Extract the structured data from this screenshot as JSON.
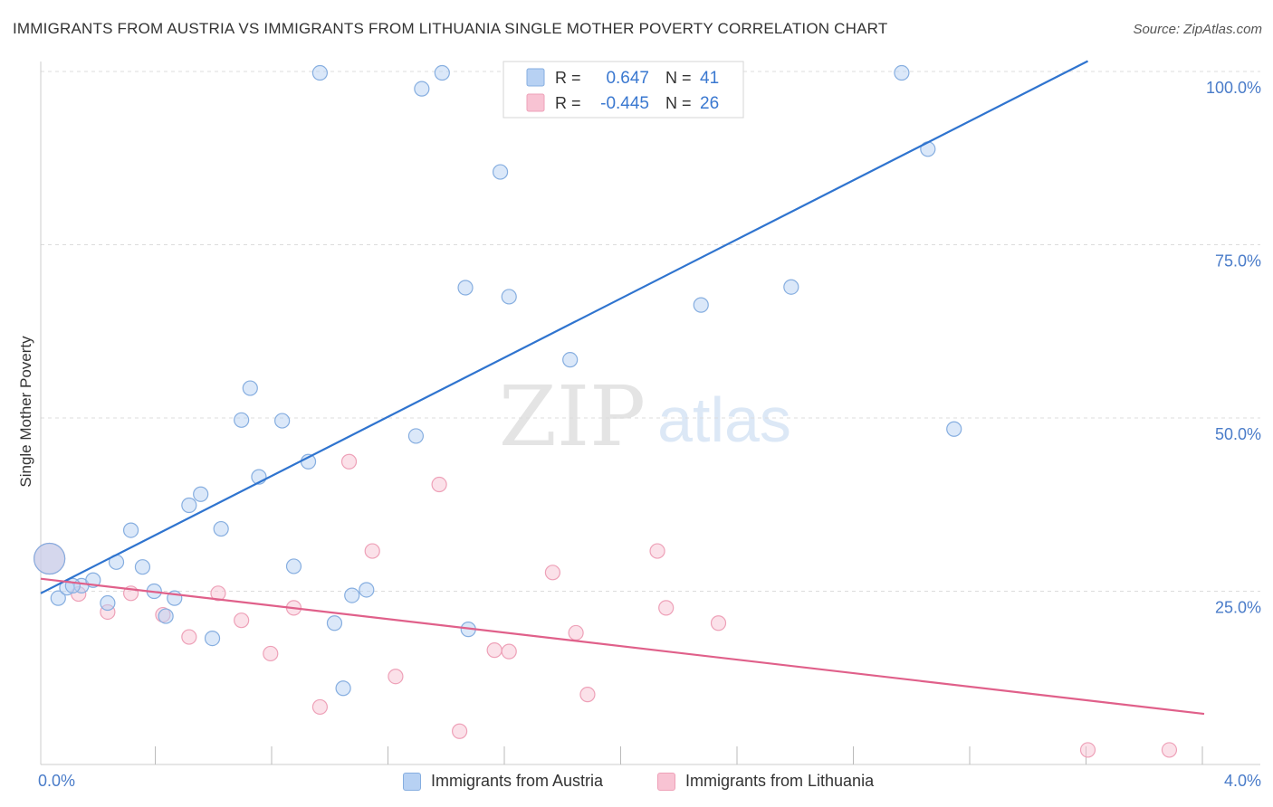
{
  "title": "IMMIGRANTS FROM AUSTRIA VS IMMIGRANTS FROM LITHUANIA SINGLE MOTHER POVERTY CORRELATION CHART",
  "source": "Source: ZipAtlas.com",
  "watermark": {
    "zip": "ZIP",
    "atlas": "atlas"
  },
  "colors": {
    "austria_fill": "#b7d1f3",
    "austria_stroke": "#86aee0",
    "austria_line": "#2f74cf",
    "lithuania_fill": "#f8c3d3",
    "lithuania_stroke": "#eea1b8",
    "lithuania_line": "#e0608a",
    "axis_label": "#4a7cc9",
    "grid": "#dddddd"
  },
  "stats_box": {
    "rows": [
      {
        "series": "austria",
        "r_label": "R =",
        "r_value": "0.647",
        "n_label": "N =",
        "n_value": "41"
      },
      {
        "series": "lithuania",
        "r_label": "R =",
        "r_value": "-0.445",
        "n_label": "N =",
        "n_value": "26"
      }
    ]
  },
  "legend": {
    "austria": "Immigrants from Austria",
    "lithuania": "Immigrants from Lithuania"
  },
  "chart_data": {
    "type": "scatter",
    "xlabel": "",
    "ylabel": "Single Mother Poverty",
    "xlim": [
      0,
      4.0
    ],
    "ylim": [
      0,
      102
    ],
    "x_tick_labels": [
      {
        "value": 0.0,
        "label": "0.0%"
      },
      {
        "value": 4.0,
        "label": "4.0%"
      }
    ],
    "y_tick_labels": [
      {
        "value": 25,
        "label": "25.0%"
      },
      {
        "value": 50,
        "label": "50.0%"
      },
      {
        "value": 75,
        "label": "75.0%"
      },
      {
        "value": 100,
        "label": "100.0%"
      }
    ],
    "y_gridlines": [
      25,
      50,
      75,
      100
    ],
    "x_ticks": [
      0.4,
      0.8,
      1.2,
      1.6,
      2.0,
      2.4,
      2.8,
      3.2,
      3.6,
      4.0
    ],
    "series": [
      {
        "name": "Immigrants from Austria",
        "key": "austria",
        "trend": {
          "x0": 0.0,
          "y0": 24.7,
          "x1": 3.6,
          "y1": 101.5
        },
        "points": [
          [
            0.03,
            29.7,
            "large"
          ],
          [
            0.06,
            24.0
          ],
          [
            0.09,
            25.5
          ],
          [
            0.14,
            25.8
          ],
          [
            0.18,
            26.6
          ],
          [
            0.23,
            23.3
          ],
          [
            0.26,
            29.2
          ],
          [
            0.31,
            33.8
          ],
          [
            0.35,
            28.5
          ],
          [
            0.39,
            25.0
          ],
          [
            0.43,
            21.4
          ],
          [
            0.46,
            24.0
          ],
          [
            0.51,
            37.4
          ],
          [
            0.55,
            39.0
          ],
          [
            0.59,
            18.2
          ],
          [
            0.62,
            34.0
          ],
          [
            0.69,
            49.7
          ],
          [
            0.72,
            54.3
          ],
          [
            0.75,
            41.5
          ],
          [
            0.83,
            49.6
          ],
          [
            0.87,
            28.6
          ],
          [
            0.92,
            43.7
          ],
          [
            0.96,
            99.8
          ],
          [
            1.01,
            20.4
          ],
          [
            1.04,
            11.0
          ],
          [
            1.07,
            24.4
          ],
          [
            1.12,
            25.2
          ],
          [
            1.29,
            47.4
          ],
          [
            1.31,
            97.5
          ],
          [
            1.38,
            99.8
          ],
          [
            1.47,
            19.5
          ],
          [
            1.46,
            68.8
          ],
          [
            1.58,
            85.5
          ],
          [
            1.61,
            67.5
          ],
          [
            1.82,
            58.4
          ],
          [
            2.27,
            66.3
          ],
          [
            2.58,
            68.9
          ],
          [
            2.96,
            99.8
          ],
          [
            3.05,
            88.8
          ],
          [
            3.14,
            48.4
          ],
          [
            0.11,
            25.8
          ]
        ]
      },
      {
        "name": "Immigrants from Lithuania",
        "key": "lithuania",
        "trend": {
          "x0": 0.0,
          "y0": 26.8,
          "x1": 4.0,
          "y1": 7.3
        },
        "points": [
          [
            0.03,
            29.7,
            "large"
          ],
          [
            0.13,
            24.6
          ],
          [
            0.23,
            22.0
          ],
          [
            0.31,
            24.7
          ],
          [
            0.42,
            21.6
          ],
          [
            0.51,
            18.4
          ],
          [
            0.61,
            24.7
          ],
          [
            0.69,
            20.8
          ],
          [
            0.79,
            16.0
          ],
          [
            0.87,
            22.6
          ],
          [
            0.96,
            8.3
          ],
          [
            1.06,
            43.7
          ],
          [
            1.14,
            30.8
          ],
          [
            1.22,
            12.7
          ],
          [
            1.37,
            40.4
          ],
          [
            1.44,
            4.8
          ],
          [
            1.56,
            16.5
          ],
          [
            1.61,
            16.3
          ],
          [
            1.76,
            27.7
          ],
          [
            1.84,
            19.0
          ],
          [
            1.88,
            10.1
          ],
          [
            2.12,
            30.8
          ],
          [
            2.15,
            22.6
          ],
          [
            2.33,
            20.4
          ],
          [
            3.6,
            2.1
          ],
          [
            3.88,
            2.1
          ]
        ]
      }
    ]
  }
}
